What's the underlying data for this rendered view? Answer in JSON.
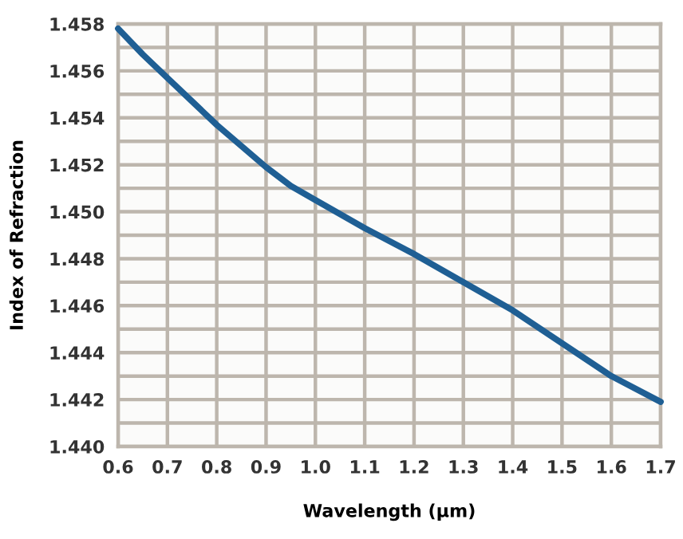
{
  "chart_data": {
    "type": "line",
    "xlabel": "Wavelength (µm)",
    "ylabel": "Index of Refraction",
    "x": [
      0.6,
      0.65,
      0.7,
      0.75,
      0.8,
      0.85,
      0.9,
      0.95,
      1.0,
      1.1,
      1.2,
      1.3,
      1.4,
      1.5,
      1.6,
      1.7
    ],
    "series": [
      {
        "color": "#1f5f94",
        "values": [
          1.4578,
          1.4567,
          1.4557,
          1.4547,
          1.4537,
          1.4528,
          1.4519,
          1.4511,
          1.4505,
          1.4493,
          1.4482,
          1.447,
          1.4458,
          1.4444,
          1.443,
          1.4419
        ]
      }
    ],
    "xlim": [
      0.6,
      1.7
    ],
    "ylim": [
      1.44,
      1.458
    ],
    "xticks": [
      {
        "value": 0.6,
        "label": "0.6"
      },
      {
        "value": 0.7,
        "label": "0.7"
      },
      {
        "value": 0.8,
        "label": "0.8"
      },
      {
        "value": 0.9,
        "label": "0.9"
      },
      {
        "value": 1.0,
        "label": "1.0"
      },
      {
        "value": 1.1,
        "label": "1.1"
      },
      {
        "value": 1.2,
        "label": "1.2"
      },
      {
        "value": 1.3,
        "label": "1.3"
      },
      {
        "value": 1.4,
        "label": "1.4"
      },
      {
        "value": 1.5,
        "label": "1.5"
      },
      {
        "value": 1.6,
        "label": "1.6"
      },
      {
        "value": 1.7,
        "label": "1.7"
      }
    ],
    "yticks": [
      {
        "value": 1.44,
        "label": "1.440"
      },
      {
        "value": 1.441,
        "label": null
      },
      {
        "value": 1.442,
        "label": "1.442"
      },
      {
        "value": 1.443,
        "label": null
      },
      {
        "value": 1.444,
        "label": "1.444"
      },
      {
        "value": 1.445,
        "label": null
      },
      {
        "value": 1.446,
        "label": "1.446"
      },
      {
        "value": 1.447,
        "label": null
      },
      {
        "value": 1.448,
        "label": "1.448"
      },
      {
        "value": 1.449,
        "label": null
      },
      {
        "value": 1.45,
        "label": "1.450"
      },
      {
        "value": 1.451,
        "label": null
      },
      {
        "value": 1.452,
        "label": "1.452"
      },
      {
        "value": 1.453,
        "label": null
      },
      {
        "value": 1.454,
        "label": "1.454"
      },
      {
        "value": 1.455,
        "label": null
      },
      {
        "value": 1.456,
        "label": "1.456"
      },
      {
        "value": 1.457,
        "label": null
      },
      {
        "value": 1.458,
        "label": "1.458"
      }
    ],
    "grid": true,
    "legend": false,
    "marker": "none",
    "line_style": "solid"
  }
}
